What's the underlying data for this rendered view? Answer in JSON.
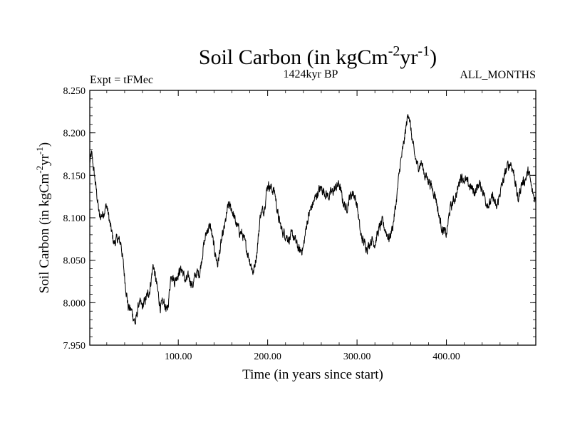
{
  "chart_data": {
    "type": "line",
    "title": "Soil Carbon (in kgCm",
    "title_exp1": "-2",
    "title_mid": "yr",
    "title_exp2": "-1",
    "title_end": ")",
    "subtitle_left": "Expt = tFMec",
    "subtitle_center": "1424kyr BP",
    "subtitle_right": "ALL_MONTHS",
    "xlabel": "Time (in years since start)",
    "ylabel": "Soil Carbon (in kgCm",
    "ylabel_exp1": "-2",
    "ylabel_mid": "yr",
    "ylabel_exp2": "-1",
    "ylabel_end": ")",
    "xlim": [
      1,
      500
    ],
    "ylim": [
      7.95,
      8.25
    ],
    "xticks": [
      100,
      200,
      300,
      400
    ],
    "xtick_labels": [
      "100.00",
      "200.00",
      "300.00",
      "400.00"
    ],
    "yticks": [
      7.95,
      8.0,
      8.05,
      8.1,
      8.15,
      8.2,
      8.25
    ],
    "ytick_labels": [
      "7.950",
      "8.000",
      "8.050",
      "8.100",
      "8.150",
      "8.200",
      "8.250"
    ],
    "noise_amplitude": 0.007,
    "series": [
      {
        "name": "Soil Carbon",
        "color": "#000000",
        "x": [
          1,
          3,
          5,
          8,
          12,
          16,
          20,
          24,
          28,
          32,
          36,
          40,
          44,
          48,
          52,
          56,
          60,
          64,
          68,
          72,
          76,
          80,
          84,
          88,
          92,
          96,
          100,
          104,
          108,
          112,
          116,
          120,
          124,
          128,
          132,
          136,
          140,
          144,
          148,
          152,
          156,
          160,
          164,
          168,
          172,
          176,
          180,
          184,
          188,
          192,
          196,
          200,
          204,
          208,
          212,
          216,
          220,
          224,
          228,
          232,
          236,
          240,
          244,
          248,
          252,
          256,
          260,
          264,
          268,
          272,
          276,
          280,
          284,
          288,
          292,
          296,
          300,
          304,
          308,
          312,
          316,
          320,
          324,
          328,
          332,
          336,
          340,
          344,
          348,
          352,
          356,
          358,
          360,
          364,
          368,
          372,
          376,
          380,
          384,
          388,
          392,
          396,
          400,
          404,
          408,
          412,
          416,
          420,
          424,
          428,
          432,
          436,
          440,
          444,
          448,
          452,
          456,
          460,
          464,
          468,
          472,
          476,
          480,
          484,
          488,
          492,
          496,
          500
        ],
        "y": [
          8.165,
          8.175,
          8.16,
          8.135,
          8.1,
          8.105,
          8.115,
          8.09,
          8.07,
          8.075,
          8.07,
          8.03,
          7.995,
          7.99,
          7.975,
          8.0,
          7.995,
          8.005,
          8.015,
          8.045,
          8.02,
          7.995,
          8.0,
          7.99,
          8.035,
          8.025,
          8.035,
          8.04,
          8.025,
          8.03,
          8.02,
          8.035,
          8.035,
          8.065,
          8.085,
          8.09,
          8.065,
          8.045,
          8.07,
          8.09,
          8.115,
          8.11,
          8.095,
          8.085,
          8.08,
          8.065,
          8.05,
          8.035,
          8.06,
          8.105,
          8.11,
          8.14,
          8.135,
          8.13,
          8.1,
          8.085,
          8.08,
          8.075,
          8.08,
          8.07,
          8.06,
          8.065,
          8.095,
          8.11,
          8.12,
          8.13,
          8.135,
          8.13,
          8.125,
          8.13,
          8.135,
          8.14,
          8.12,
          8.11,
          8.125,
          8.13,
          8.115,
          8.08,
          8.07,
          8.065,
          8.075,
          8.07,
          8.085,
          8.095,
          8.085,
          8.075,
          8.09,
          8.12,
          8.16,
          8.185,
          8.215,
          8.225,
          8.205,
          8.175,
          8.16,
          8.165,
          8.15,
          8.145,
          8.135,
          8.125,
          8.1,
          8.085,
          8.08,
          8.11,
          8.12,
          8.13,
          8.15,
          8.145,
          8.14,
          8.135,
          8.13,
          8.14,
          8.135,
          8.12,
          8.115,
          8.125,
          8.11,
          8.13,
          8.145,
          8.16,
          8.165,
          8.15,
          8.12,
          8.14,
          8.145,
          8.155,
          8.13,
          8.12
        ]
      }
    ]
  }
}
